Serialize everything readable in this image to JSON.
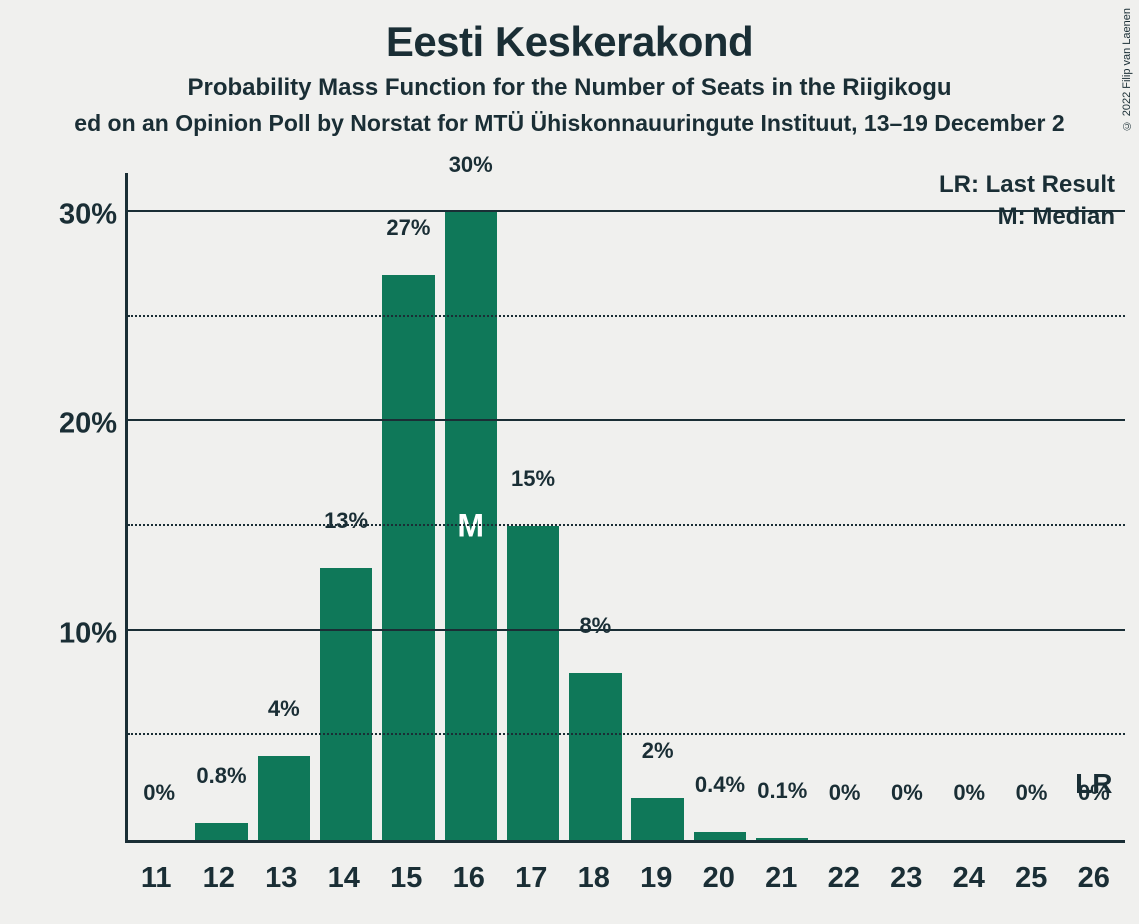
{
  "copyright": "© 2022 Filip van Laenen",
  "title": "Eesti Keskerakond",
  "subtitle": "Probability Mass Function for the Number of Seats in the Riigikogu",
  "source": "ed on an Opinion Poll by Norstat for MTÜ Ühiskonnauuringute Instituut, 13–19 December 2",
  "legend": {
    "lr": "LR: Last Result",
    "m": "M: Median"
  },
  "chart": {
    "type": "bar",
    "bar_color": "#0f7859",
    "background_color": "#f0f0ee",
    "axis_color": "#1a2e35",
    "text_color": "#1a2e35",
    "median_text_color": "#ffffff",
    "ylim_max": 32,
    "y_major_ticks": [
      10,
      20,
      30
    ],
    "y_minor_ticks": [
      5,
      15,
      25
    ],
    "bar_width_ratio": 0.84,
    "categories": [
      "11",
      "12",
      "13",
      "14",
      "15",
      "16",
      "17",
      "18",
      "19",
      "20",
      "21",
      "22",
      "23",
      "24",
      "25",
      "26"
    ],
    "values": [
      0,
      0.8,
      4,
      13,
      27,
      30,
      15,
      8,
      2,
      0.4,
      0.1,
      0,
      0,
      0,
      0,
      0
    ],
    "labels": [
      "0%",
      "0.8%",
      "4%",
      "13%",
      "27%",
      "30%",
      "15%",
      "8%",
      "2%",
      "0.4%",
      "0.1%",
      "0%",
      "0%",
      "0%",
      "0%",
      "0%"
    ],
    "median_index": 5,
    "median_label": "M",
    "lr_index": 15,
    "lr_label": "LR",
    "title_fontsize": 42,
    "subtitle_fontsize": 24,
    "axis_label_fontsize": 29,
    "bar_label_fontsize": 22
  }
}
